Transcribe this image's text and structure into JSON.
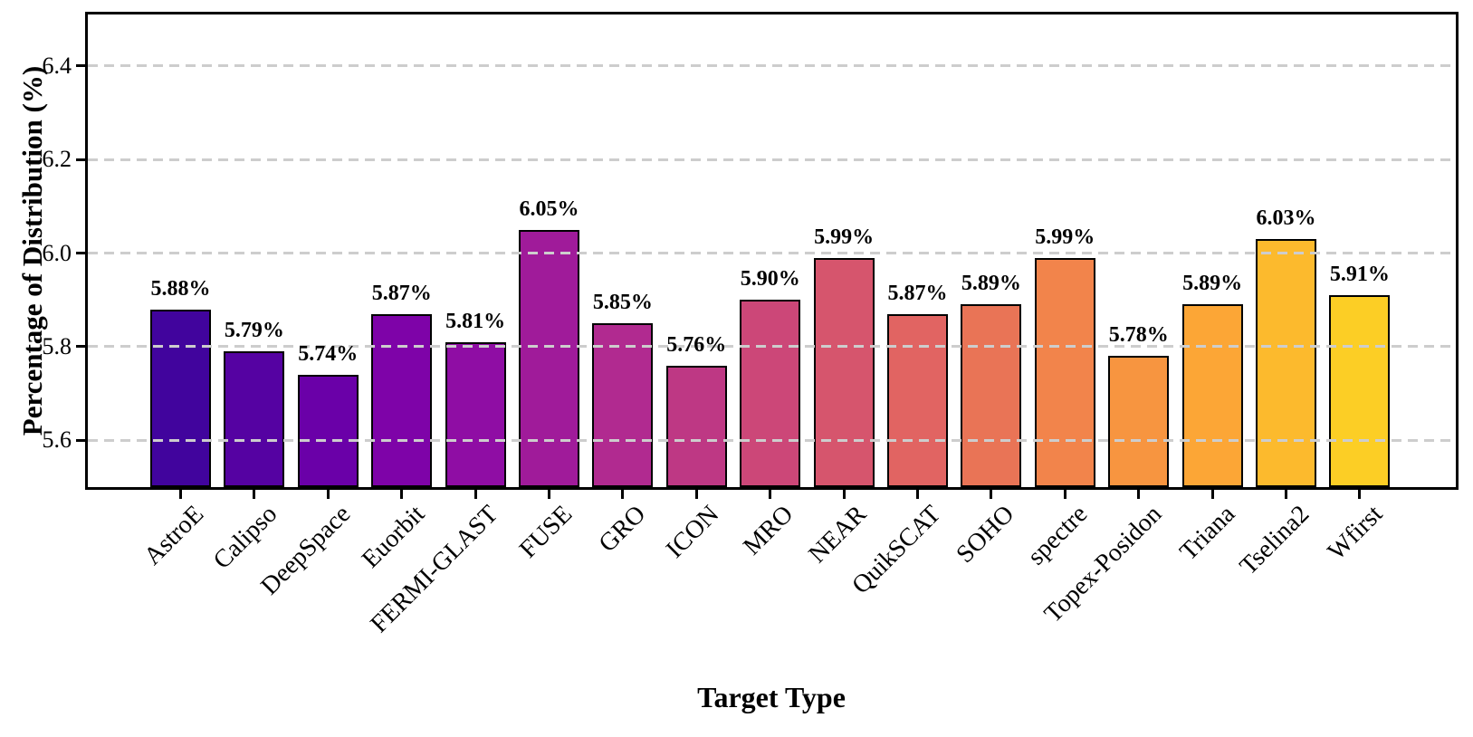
{
  "chart_data": {
    "type": "bar",
    "title": "",
    "xlabel": "Target Type",
    "ylabel": "Percentage of Distribution (%)",
    "categories": [
      "AstroE",
      "Calipso",
      "DeepSpace",
      "Euorbit",
      "FERMI-GLAST",
      "FUSE",
      "GRO",
      "ICON",
      "MRO",
      "NEAR",
      "QuikSCAT",
      "SOHO",
      "spectre",
      "Topex-Posidon",
      "Triana",
      "Tselina2",
      "Wfirst"
    ],
    "values": [
      5.88,
      5.79,
      5.74,
      5.87,
      5.81,
      6.05,
      5.85,
      5.76,
      5.9,
      5.99,
      5.87,
      5.89,
      5.99,
      5.78,
      5.89,
      6.03,
      5.91
    ],
    "value_labels": [
      "5.88%",
      "5.79%",
      "5.74%",
      "5.87%",
      "5.81%",
      "6.05%",
      "5.85%",
      "5.76%",
      "5.90%",
      "5.99%",
      "5.87%",
      "5.89%",
      "5.99%",
      "5.78%",
      "5.89%",
      "6.03%",
      "5.91%"
    ],
    "bar_colors": [
      "#41049d",
      "#5502a2",
      "#6a00a8",
      "#7e03a8",
      "#8f0da4",
      "#a01b9a",
      "#b12a90",
      "#be3884",
      "#cc4778",
      "#d6556d",
      "#e16462",
      "#e97456",
      "#f2844b",
      "#f79540",
      "#fca636",
      "#fcba2d",
      "#fcce25"
    ],
    "ylim": [
      5.5,
      6.51
    ],
    "yticks": [
      5.6,
      5.8,
      6.0,
      6.2,
      6.4
    ],
    "ytick_labels": [
      "5.6",
      "5.8",
      "6.0",
      "6.2",
      "6.4"
    ],
    "grid": "horizontal-dashed",
    "gridline_color": "#cdcdcd",
    "bar_edge_color": "#000000",
    "legend_position": "none"
  }
}
